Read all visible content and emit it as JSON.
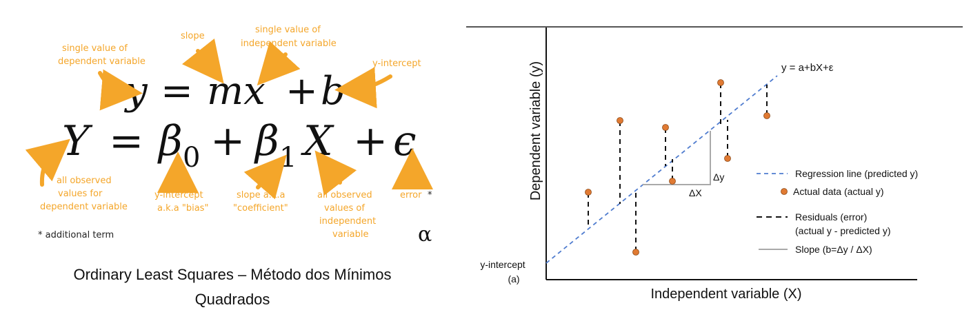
{
  "left_panel": {
    "equation_1": {
      "y": "y",
      "eq": "=",
      "mx": "mx",
      "plus": "+",
      "b": "b"
    },
    "equation_2": {
      "Y": "Y",
      "eq": "=",
      "beta": "β",
      "sub0": "0",
      "plus1": "+",
      "beta1": "β",
      "sub1": "1",
      "X": "X",
      "plus2": "+",
      "eps": "ϵ"
    },
    "annotations": {
      "dependent_single": [
        "single value of",
        "dependent variable"
      ],
      "slope": "slope",
      "independent_single": [
        "single value of",
        "independent variable"
      ],
      "y_intercept": "y-intercept",
      "all_dependent": [
        "all observed",
        "values for",
        "dependent variable"
      ],
      "intercept_bias": [
        "y-intercept",
        "a.k.a \"bias\""
      ],
      "slope_coefficient": [
        "slope a.k.a",
        "\"coefficient\""
      ],
      "all_independent": [
        "all observed",
        "values of",
        "independent",
        "variable"
      ],
      "error": "error",
      "error_star": "*",
      "additional_term": "* additional term"
    },
    "alpha_symbol": "α",
    "caption": [
      "Ordinary Least Squares – Método dos Mínimos",
      "Quadrados"
    ]
  },
  "chart": {
    "equation_label": "y = a+bX+ε",
    "y_axis_label": "Dependent variable (y)",
    "x_axis_label": "Independent variable (X)",
    "intercept_label": [
      "y-intercept",
      "(a)"
    ],
    "delta_x_label": "ΔX",
    "delta_y_label": "Δy",
    "legend": {
      "regression": "Regression line (predicted y)",
      "actual": "Actual data (actual y)",
      "residuals": [
        "Residuals (error)",
        "(actual y - predicted y)"
      ],
      "slope": "Slope (b=Δy / ΔX)"
    },
    "colors": {
      "regression_line": "#4f7ccf",
      "data_point": "#e07a33",
      "residual": "#111111",
      "slope": "#a9a9a9"
    }
  }
}
